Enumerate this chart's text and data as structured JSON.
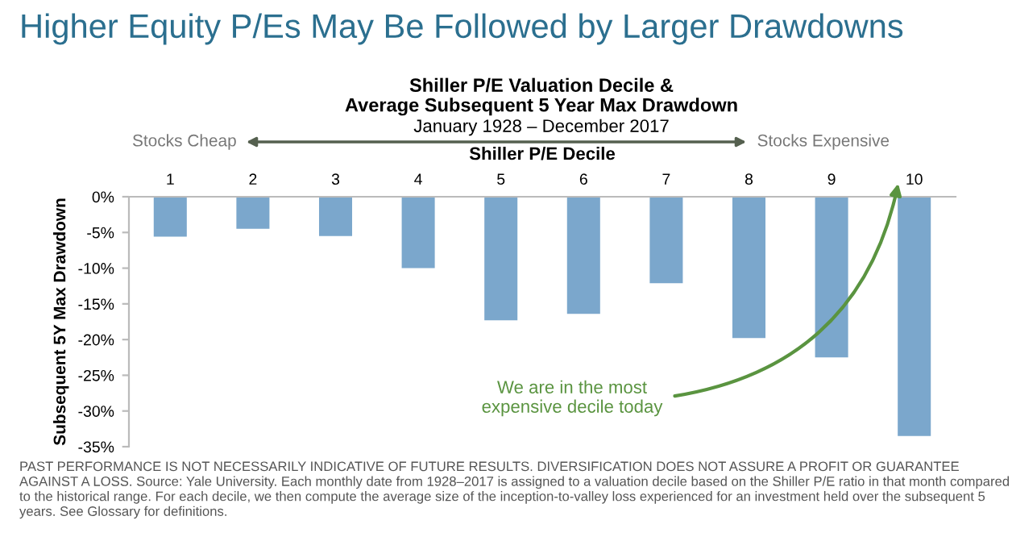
{
  "chart_data": {
    "type": "bar",
    "title": "Higher Equity P/Es May Be Followed by Larger Drawdowns",
    "subtitle": "Shiller P/E Valuation Decile &\nAverage Subsequent 5 Year Max Drawdown",
    "xlabel": "Shiller P/E Decile",
    "ylabel": "Subsequent 5Y Max Drawdown",
    "categories": [
      "1",
      "2",
      "3",
      "4",
      "5",
      "6",
      "7",
      "8",
      "9",
      "10"
    ],
    "values": [
      -5.6,
      -4.5,
      -5.5,
      -10.0,
      -17.3,
      -16.4,
      -12.1,
      -19.8,
      -22.5,
      -33.5
    ],
    "color": "#7ba7cc",
    "ylim": [
      -35,
      0
    ],
    "yticks": [
      {
        "value": 0,
        "label": "0%"
      },
      {
        "value": -5,
        "label": "-5%"
      },
      {
        "value": -10,
        "label": "-10%"
      },
      {
        "value": -15,
        "label": "-15%"
      },
      {
        "value": -20,
        "label": "-20%"
      },
      {
        "value": -25,
        "label": "-25%"
      },
      {
        "value": -30,
        "label": "-30%"
      },
      {
        "value": -35,
        "label": "-35%"
      }
    ],
    "grid": false,
    "legend": false,
    "annotations": [
      "January 1928 – December 2017",
      "Stocks Cheap",
      "Stocks Expensive",
      "We are in the most\nexpensive decile today",
      "PAST PERFORMANCE IS NOT NECESSARILY INDICATIVE OF FUTURE RESULTS. DIVERSIFICATION DOES NOT ASSURE A PROFIT OR GUARANTEE AGAINST A LOSS. Source: Yale University. Each monthly date from 1928–2017 is assigned to a valuation decile based on the Shiller P/E ratio in that month compared to the historical range. For each decile, we then compute the average size of the inception-to-valley loss experienced for an investment held over the subsequent 5 years. See Glossary for definitions."
    ]
  }
}
